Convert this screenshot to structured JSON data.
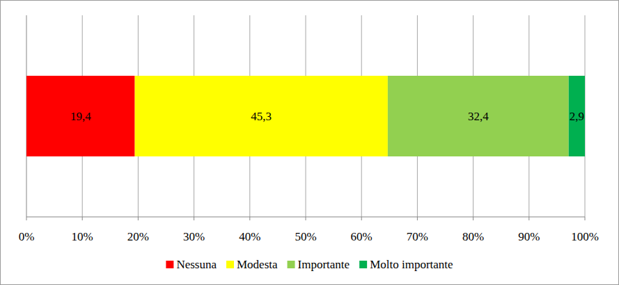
{
  "chart_data": {
    "type": "bar",
    "orientation": "horizontal",
    "stacked": true,
    "data_labels": true,
    "grid": true,
    "legend": "bottom",
    "categories": [
      null
    ],
    "xlim": [
      0,
      100
    ],
    "xticks": [
      {
        "value": 0,
        "label": "0%"
      },
      {
        "value": 10,
        "label": "10%"
      },
      {
        "value": 20,
        "label": "20%"
      },
      {
        "value": 30,
        "label": "30%"
      },
      {
        "value": 40,
        "label": "40%"
      },
      {
        "value": 50,
        "label": "50%"
      },
      {
        "value": 60,
        "label": "60%"
      },
      {
        "value": 70,
        "label": "70%"
      },
      {
        "value": 80,
        "label": "80%"
      },
      {
        "value": 90,
        "label": "90%"
      },
      {
        "value": 100,
        "label": "100%"
      }
    ],
    "series": [
      {
        "name": "Nessuna",
        "color": "#ff0000",
        "values": [
          19.4
        ],
        "value_labels": [
          "19,4"
        ]
      },
      {
        "name": "Modesta",
        "color": "#ffff00",
        "values": [
          45.3
        ],
        "value_labels": [
          "45,3"
        ]
      },
      {
        "name": "Importante",
        "color": "#92d050",
        "values": [
          32.4
        ],
        "value_labels": [
          "32,4"
        ]
      },
      {
        "name": "Molto importante",
        "color": "#00b050",
        "values": [
          2.9
        ],
        "value_labels": [
          "2,9"
        ]
      }
    ]
  }
}
